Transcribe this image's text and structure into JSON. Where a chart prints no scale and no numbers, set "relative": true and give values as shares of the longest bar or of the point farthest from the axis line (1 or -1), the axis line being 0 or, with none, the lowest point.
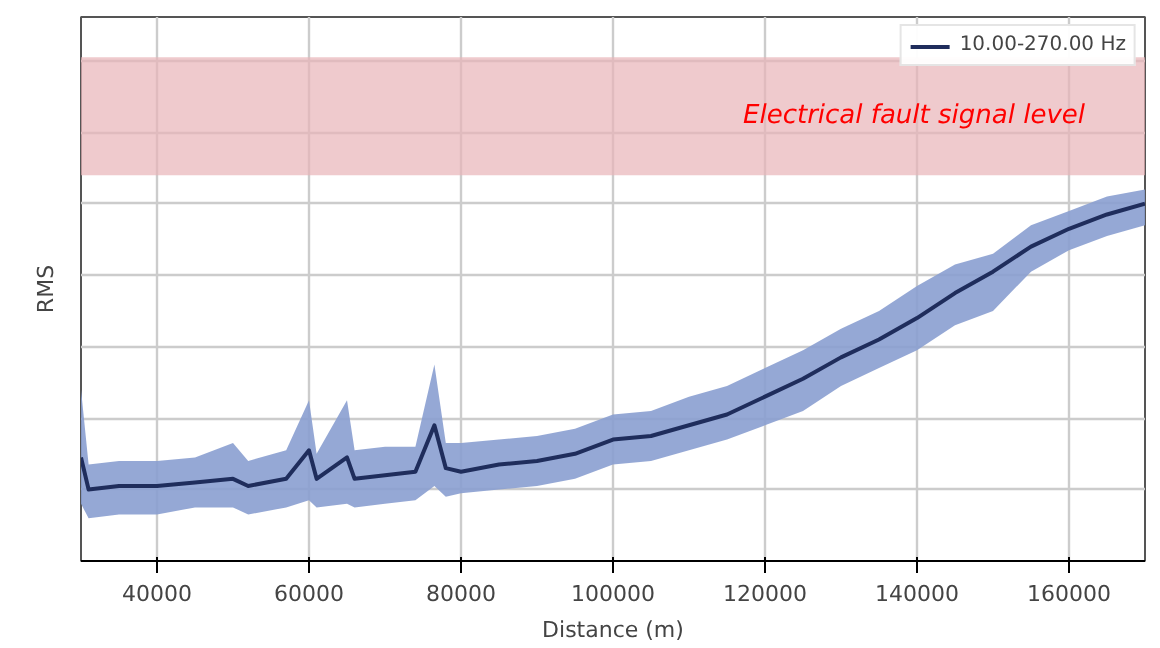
{
  "chart_data": {
    "type": "line",
    "relative": true,
    "xlabel": "Distance (m)",
    "ylabel": "RMS",
    "xlim": [
      30000,
      170000
    ],
    "xticks": [
      40000,
      60000,
      80000,
      100000,
      120000,
      140000,
      160000
    ],
    "grid": true,
    "legend": "top right",
    "tick_labels": "x",
    "x": [
      30000,
      31000,
      35000,
      40000,
      45000,
      50000,
      52000,
      57000,
      60000,
      61000,
      65000,
      66000,
      70000,
      74000,
      76500,
      78000,
      80000,
      85000,
      90000,
      95000,
      100000,
      105000,
      110000,
      115000,
      120000,
      125000,
      130000,
      135000,
      140000,
      145000,
      150000,
      155000,
      160000,
      165000,
      170000
    ],
    "series": [
      {
        "name": "10.00-270.00 Hz",
        "color": "#1f2d5c",
        "values": [
          0.29,
          0.2,
          0.21,
          0.21,
          0.22,
          0.23,
          0.21,
          0.23,
          0.31,
          0.23,
          0.29,
          0.23,
          0.24,
          0.25,
          0.38,
          0.26,
          0.25,
          0.27,
          0.28,
          0.3,
          0.34,
          0.35,
          0.38,
          0.41,
          0.46,
          0.51,
          0.57,
          0.62,
          0.68,
          0.75,
          0.81,
          0.88,
          0.93,
          0.97,
          1.0
        ],
        "lower": [
          0.16,
          0.12,
          0.13,
          0.13,
          0.15,
          0.15,
          0.13,
          0.15,
          0.17,
          0.15,
          0.16,
          0.15,
          0.16,
          0.17,
          0.21,
          0.18,
          0.19,
          0.2,
          0.21,
          0.23,
          0.27,
          0.28,
          0.31,
          0.34,
          0.38,
          0.42,
          0.49,
          0.54,
          0.59,
          0.66,
          0.7,
          0.81,
          0.87,
          0.91,
          0.94
        ],
        "upper": [
          0.48,
          0.27,
          0.28,
          0.28,
          0.29,
          0.33,
          0.28,
          0.31,
          0.45,
          0.3,
          0.45,
          0.31,
          0.32,
          0.32,
          0.55,
          0.33,
          0.33,
          0.34,
          0.35,
          0.37,
          0.41,
          0.42,
          0.46,
          0.49,
          0.54,
          0.59,
          0.65,
          0.7,
          0.77,
          0.83,
          0.86,
          0.94,
          0.98,
          1.02,
          1.04
        ]
      }
    ],
    "bands": [
      {
        "axis": "y",
        "from": 1.08,
        "to": 1.41,
        "label": "Electrical fault signal level",
        "color": "#e8b4b8"
      }
    ]
  }
}
